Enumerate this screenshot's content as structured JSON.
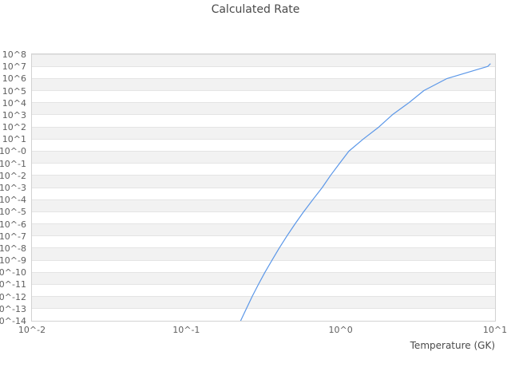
{
  "title": "Calculated Rate",
  "colors": {
    "line": "#5b97e8",
    "band": "#f2f2f2",
    "gridline": "#e4e4e4",
    "plot_border": "#d2d2d2",
    "tick_text": "#5f5f5f",
    "title_text": "#4a4a4a"
  },
  "chart_data": {
    "type": "line",
    "title": "Calculated Rate",
    "xlabel": "Temperature (GK)",
    "ylabel": "",
    "x_scale": "log10",
    "y_scale": "log10",
    "xlim": [
      0.01,
      10
    ],
    "ylim": [
      1e-14,
      100000000.0
    ],
    "x_tick_labels": [
      "10^-2",
      "10^-1",
      "10^0",
      "10^1"
    ],
    "x_tick_exponents": [
      -2,
      -1,
      0,
      1
    ],
    "y_tick_labels": [
      "10^8",
      "10^7",
      "10^6",
      "10^5",
      "10^4",
      "10^3",
      "10^2",
      "10^1",
      "10^-0",
      "10^-1",
      "10^-2",
      "10^-3",
      "10^-4",
      "10^-5",
      "10^-6",
      "10^-7",
      "10^-8",
      "10^-9",
      "10^-10",
      "10^-11",
      "10^-12",
      "10^-13",
      "10^-14"
    ],
    "y_tick_exponents": [
      8,
      7,
      6,
      5,
      4,
      3,
      2,
      1,
      0,
      -1,
      -2,
      -3,
      -4,
      -5,
      -6,
      -7,
      -8,
      -9,
      -10,
      -11,
      -12,
      -13,
      -14
    ],
    "grid": "horizontal-bands-alternating",
    "legend": "none",
    "series": [
      {
        "name": "calculated-rate",
        "color": "#5b97e8",
        "points_T_GK_vs_rate": [
          [
            0.225,
            1e-14
          ],
          [
            0.245,
            1e-13
          ],
          [
            0.267,
            1e-12
          ],
          [
            0.293,
            1e-11
          ],
          [
            0.323,
            1e-10
          ],
          [
            0.359,
            1e-09
          ],
          [
            0.4,
            1e-08
          ],
          [
            0.449,
            1e-07
          ],
          [
            0.507,
            1e-06
          ],
          [
            0.576,
            1e-05
          ],
          [
            0.66,
            0.0001
          ],
          [
            0.76,
            0.001
          ],
          [
            0.86,
            0.01
          ],
          [
            0.985,
            0.1
          ],
          [
            1.13,
            1.0
          ],
          [
            1.4,
            10
          ],
          [
            1.77,
            100
          ],
          [
            2.16,
            1000
          ],
          [
            2.77,
            10000
          ],
          [
            3.46,
            100000
          ],
          [
            4.89,
            1000000
          ],
          [
            8.98,
            10000000
          ],
          [
            9.31,
            16000000
          ]
        ]
      }
    ]
  }
}
